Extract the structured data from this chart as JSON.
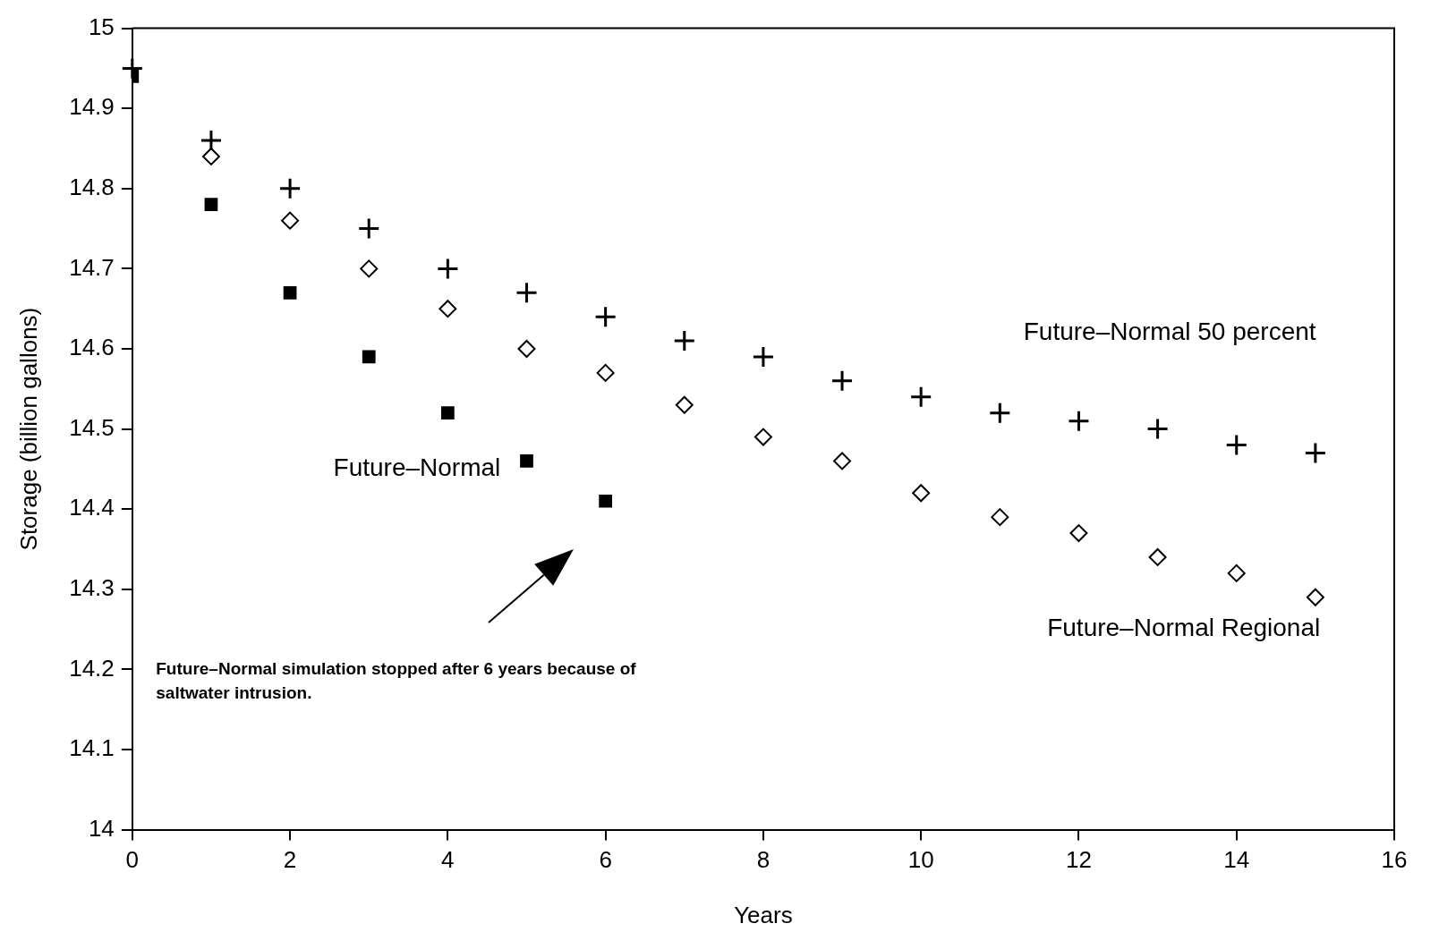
{
  "chart_data": {
    "type": "scatter",
    "xlabel": "Years",
    "ylabel": "Storage (billion gallons)",
    "xlim": [
      0,
      16
    ],
    "xticks": [
      0,
      2,
      4,
      6,
      8,
      10,
      12,
      14,
      16
    ],
    "ylim": [
      14,
      15
    ],
    "yticks": [
      14,
      14.1,
      14.2,
      14.3,
      14.4,
      14.5,
      14.6,
      14.7,
      14.8,
      14.9,
      15
    ],
    "grid": false,
    "legend": false,
    "x": [
      0,
      1,
      2,
      3,
      4,
      5,
      6,
      7,
      8,
      9,
      10,
      11,
      12,
      13,
      14,
      15
    ],
    "series": [
      {
        "name": "Future–Normal",
        "color": "#000000",
        "marker": "square",
        "x": [
          0,
          1,
          2,
          3,
          4,
          5,
          6
        ],
        "values": [
          14.94,
          14.78,
          14.67,
          14.59,
          14.52,
          14.46,
          14.41
        ]
      },
      {
        "name": "Future–Normal 50 percent",
        "color": "#000000",
        "marker": "cross",
        "values": [
          14.95,
          14.86,
          14.8,
          14.75,
          14.7,
          14.67,
          14.64,
          14.61,
          14.59,
          14.56,
          14.54,
          14.52,
          14.51,
          14.5,
          14.48,
          14.47
        ]
      },
      {
        "name": "Future–Normal Regional",
        "color": "#000000",
        "marker": "diamond",
        "values": [
          null,
          14.84,
          14.76,
          14.7,
          14.65,
          14.6,
          14.57,
          14.53,
          14.49,
          14.46,
          14.42,
          14.39,
          14.37,
          14.34,
          14.32,
          14.29
        ]
      }
    ],
    "annotations": [
      "Future–Normal simulation stopped after 6 years because of saltwater intrusion."
    ]
  }
}
